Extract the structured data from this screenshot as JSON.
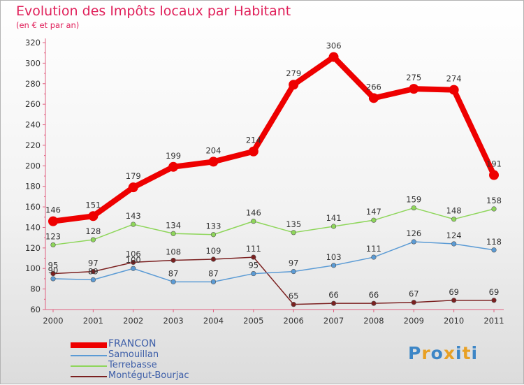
{
  "title": "Evolution des Impôts locaux par Habitant",
  "subtitle": "(en € et par an)",
  "logo": {
    "text": "Proxiti",
    "colors": [
      "#3d86c6",
      "#e8a024",
      "#3d86c6",
      "#e8a024",
      "#3d86c6",
      "#e8a024",
      "#3d86c6"
    ]
  },
  "colors": {
    "title": "#e0205a",
    "axis": "#e06080",
    "legend_text": "#3d5ea8"
  },
  "chart_data": {
    "type": "line",
    "title": "Evolution des Impôts locaux par Habitant",
    "subtitle": "(en € et par an)",
    "x": [
      "2000",
      "2001",
      "2002",
      "2003",
      "2004",
      "2005",
      "2006",
      "2007",
      "2008",
      "2009",
      "2010",
      "2011"
    ],
    "ylim": [
      60,
      320
    ],
    "yticks": [
      60,
      80,
      100,
      120,
      140,
      160,
      180,
      200,
      220,
      240,
      260,
      280,
      300,
      320
    ],
    "grid": false,
    "legend_position": "bottom-left",
    "series": [
      {
        "name": "FRANCON",
        "color": "#ee0000",
        "values": [
          146,
          151,
          179,
          199,
          204,
          214,
          279,
          306,
          266,
          275,
          274,
          191
        ]
      },
      {
        "name": "Samouillan",
        "color": "#5b9bd5",
        "values": [
          90,
          89,
          100,
          87,
          87,
          95,
          97,
          103,
          111,
          126,
          124,
          118
        ]
      },
      {
        "name": "Terrebasse",
        "color": "#8ed65a",
        "values": [
          123,
          128,
          143,
          134,
          133,
          146,
          135,
          141,
          147,
          159,
          148,
          158
        ]
      },
      {
        "name": "Montégut-Bourjac",
        "color": "#7b2020",
        "values": [
          95,
          97,
          106,
          108,
          109,
          111,
          65,
          66,
          66,
          67,
          69,
          69
        ]
      }
    ]
  }
}
